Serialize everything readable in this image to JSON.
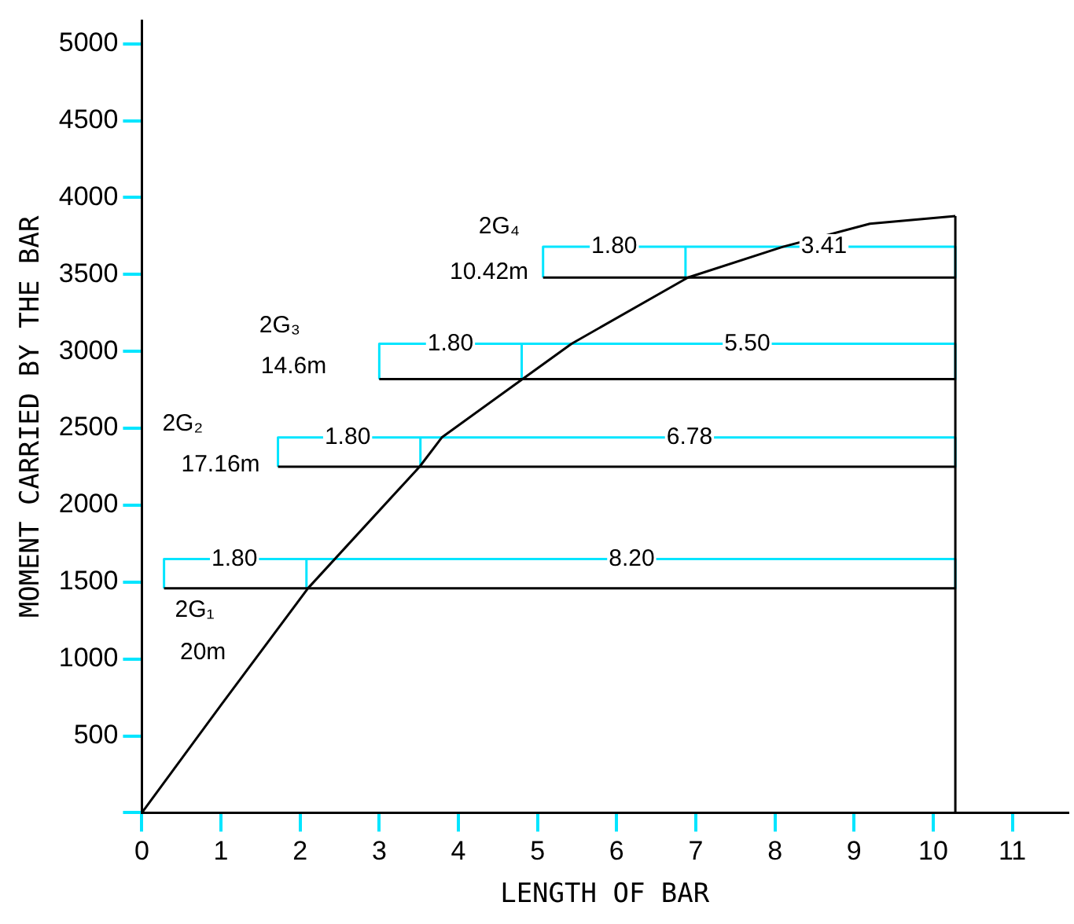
{
  "chart_data": {
    "type": "line",
    "xlabel": "LENGTH OF BAR",
    "ylabel": "MOMENT CARRIED BY THE BAR",
    "xlim": [
      0,
      11.7
    ],
    "xticks": [
      0,
      1,
      2,
      3,
      4,
      5,
      6,
      7,
      8,
      9,
      10,
      11
    ],
    "ylim": [
      0,
      5150
    ],
    "yticks": [
      {
        "value": 0,
        "label": null
      },
      500,
      1000,
      1500,
      2000,
      2500,
      3000,
      3500,
      4000,
      4500,
      5000
    ],
    "grid": false,
    "legend": false,
    "marker": "none",
    "line_style": "solid",
    "series": [
      {
        "color": "#000000",
        "x": [
          0,
          1,
          2.1,
          3.51,
          3.79,
          4.81,
          5.43,
          6.9,
          8.1,
          9.2,
          10.28
        ],
        "values": [
          0,
          700,
          1460,
          2250,
          2440,
          2820,
          3050,
          3480,
          3680,
          3830,
          3880
        ]
      },
      {
        "color": "#000000",
        "x": [
          10.28,
          10.28
        ],
        "values": [
          0,
          3880
        ]
      },
      {
        "color": "#000000",
        "x": [
          0.28,
          10.28
        ],
        "values": [
          1460,
          1460
        ]
      },
      {
        "color": "#000000",
        "x": [
          1.72,
          10.28
        ],
        "values": [
          2250,
          2250
        ]
      },
      {
        "color": "#000000",
        "x": [
          3.0,
          10.28
        ],
        "values": [
          2820,
          2820
        ]
      },
      {
        "color": "#000000",
        "x": [
          5.07,
          10.28
        ],
        "values": [
          3480,
          3480
        ]
      },
      {
        "color": "#00e5ff",
        "x": [
          0.28,
          0.28,
          2.08,
          2.08,
          2.08,
          10.28,
          10.28
        ],
        "values": [
          1460,
          1650,
          1650,
          1460,
          1650,
          1650,
          1460
        ]
      },
      {
        "color": "#00e5ff",
        "x": [
          1.72,
          1.72,
          3.52,
          3.52,
          3.52,
          10.28,
          10.28
        ],
        "values": [
          2250,
          2440,
          2440,
          2250,
          2440,
          2440,
          2250
        ]
      },
      {
        "color": "#00e5ff",
        "x": [
          3.0,
          3.0,
          4.8,
          4.8,
          4.8,
          10.28,
          10.28
        ],
        "values": [
          2820,
          3050,
          3050,
          2820,
          3050,
          3050,
          2820
        ]
      },
      {
        "color": "#00e5ff",
        "x": [
          5.07,
          5.07,
          6.87,
          6.87,
          6.87,
          10.28,
          10.28
        ],
        "values": [
          3480,
          3680,
          3680,
          3480,
          3680,
          3680,
          3480
        ]
      }
    ],
    "annotations": [
      {
        "text": "1.80",
        "x": 1.17,
        "y": 1650
      },
      {
        "text": "8.20",
        "x": 6.19,
        "y": 1650
      },
      {
        "text": "1.80",
        "x": 2.6,
        "y": 2440
      },
      {
        "text": "6.78",
        "x": 6.92,
        "y": 2440
      },
      {
        "text": "1.80",
        "x": 3.9,
        "y": 3050
      },
      {
        "text": "5.50",
        "x": 7.65,
        "y": 3050
      },
      {
        "text": "1.80",
        "x": 5.97,
        "y": 3680
      },
      {
        "text": "3.41",
        "x": 8.62,
        "y": 3680
      },
      "2G₁",
      "20m",
      "2G₂",
      "17.16m",
      "2G₃",
      "14.6m",
      "2G₄",
      "10.42m"
    ]
  }
}
